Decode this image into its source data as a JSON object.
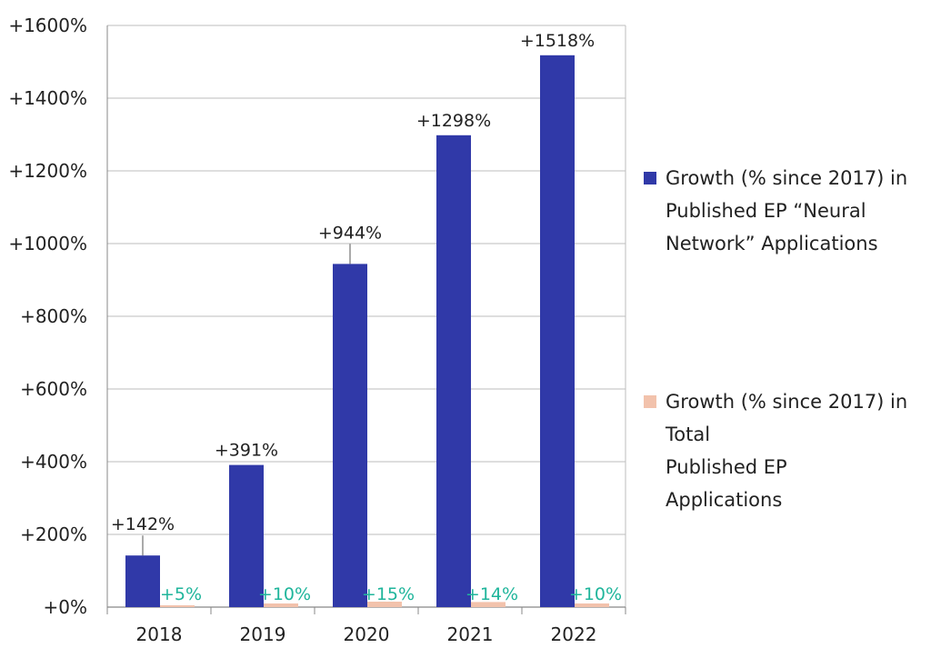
{
  "chart_data": {
    "type": "bar",
    "categories": [
      "2018",
      "2019",
      "2020",
      "2021",
      "2022"
    ],
    "series": [
      {
        "name": "Growth (% since 2017) in Published EP “Neural Network” Applications",
        "values": [
          142,
          391,
          944,
          1298,
          1518
        ],
        "labels": [
          "+142%",
          "+391%",
          "+944%",
          "+1298%",
          "+1518%"
        ]
      },
      {
        "name": "Growth (% since 2017) in Total Published EP Applications",
        "values": [
          5,
          10,
          15,
          14,
          10
        ],
        "labels": [
          "+5%",
          "+10%",
          "+15%",
          "+14%",
          "+10%"
        ]
      }
    ],
    "y_ticks": [
      0,
      200,
      400,
      600,
      800,
      1000,
      1200,
      1400,
      1600
    ],
    "y_tick_labels": [
      "+0%",
      "+200%",
      "+400%",
      "+600%",
      "+800%",
      "+1000%",
      "+1200%",
      "+1400%",
      "+1600%"
    ],
    "ylim": [
      0,
      1600
    ],
    "grid": true,
    "legend_position": "right",
    "colors": {
      "series_1": "#3039a8",
      "series_2": "#f2c2ac",
      "series_2_labels": "#1fb59b",
      "grid": "#bdbdbd",
      "axis": "#888888"
    }
  },
  "legend": {
    "items": [
      {
        "lines": [
          "Growth (% since 2017) in",
          "Published EP “Neural",
          "Network” Applications"
        ]
      },
      {
        "lines": [
          "Growth (% since 2017) in",
          "Total",
          "Published EP",
          "Applications"
        ]
      }
    ]
  }
}
